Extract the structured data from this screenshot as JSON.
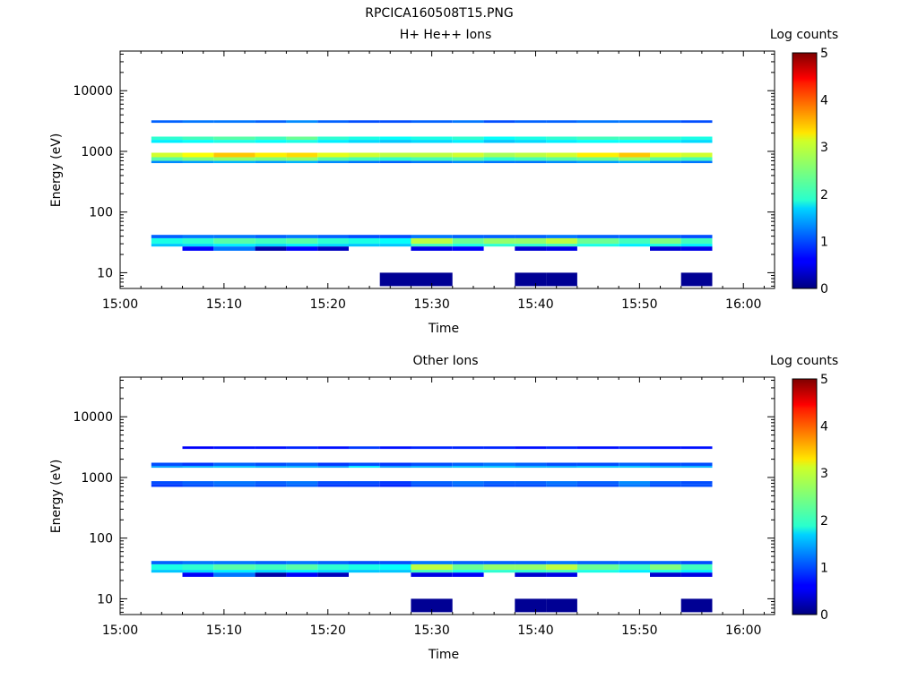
{
  "figure_title": "RPCICA160508T15.PNG",
  "chart_data": [
    {
      "type": "heatmap",
      "title": "H+ He++ Ions",
      "xlabel": "Time",
      "ylabel": "Energy (eV)",
      "yscale": "log",
      "xlim": [
        "15:00",
        "16:03"
      ],
      "ylim": [
        5.5,
        45000
      ],
      "xticks": [
        "15:00",
        "15:10",
        "15:20",
        "15:30",
        "15:40",
        "15:50",
        "16:00"
      ],
      "yticks": [
        "10",
        "100",
        "1000",
        "10000"
      ],
      "colorbar": {
        "label": "Log counts",
        "min": 0,
        "max": 5,
        "ticks": [
          "0",
          "1",
          "2",
          "3",
          "4",
          "5"
        ],
        "colormap": "jet"
      },
      "time_bins": [
        "15:03",
        "15:06",
        "15:09",
        "15:13",
        "15:16",
        "15:19",
        "15:22",
        "15:25",
        "15:28",
        "15:32",
        "15:35",
        "15:38",
        "15:41",
        "15:44",
        "15:48",
        "15:51",
        "15:54"
      ],
      "time_end": "15:57",
      "bands": [
        {
          "energy_range": [
            800,
            950
          ],
          "log_counts": [
            2.9,
            3.1,
            3.4,
            3.2,
            3.3,
            3.0,
            2.9,
            2.8,
            2.8,
            2.9,
            2.7,
            2.8,
            2.9,
            3.2,
            3.4,
            3.0,
            2.9
          ]
        },
        {
          "energy_range": [
            700,
            800
          ],
          "log_counts": [
            2.3,
            2.5,
            2.6,
            2.5,
            2.6,
            2.3,
            2.2,
            2.1,
            2.2,
            2.3,
            2.1,
            2.2,
            2.3,
            2.4,
            2.6,
            2.3,
            2.2
          ]
        },
        {
          "energy_range": [
            640,
            700
          ],
          "log_counts": [
            1.3,
            1.4,
            1.5,
            1.4,
            1.5,
            1.3,
            1.2,
            1.1,
            1.2,
            1.3,
            1.2,
            1.2,
            1.3,
            1.4,
            1.5,
            1.3,
            1.2
          ]
        },
        {
          "energy_range": [
            1550,
            1750
          ],
          "log_counts": [
            2.1,
            2.2,
            2.3,
            2.2,
            2.4,
            2.1,
            2.0,
            1.9,
            2.0,
            2.1,
            1.9,
            2.0,
            2.1,
            2.2,
            2.2,
            2.1,
            2.0
          ]
        },
        {
          "energy_range": [
            1380,
            1550
          ],
          "log_counts": [
            1.8,
            1.9,
            2.0,
            1.9,
            2.0,
            1.8,
            1.7,
            1.6,
            1.7,
            1.8,
            1.6,
            1.7,
            1.8,
            1.9,
            1.9,
            1.8,
            1.7
          ]
        },
        {
          "energy_range": [
            2950,
            3250
          ],
          "log_counts": [
            1.1,
            1.2,
            1.2,
            1.1,
            1.3,
            1.1,
            1.0,
            1.0,
            1.1,
            1.2,
            1.0,
            1.1,
            1.1,
            1.2,
            1.2,
            1.1,
            1.0
          ]
        },
        {
          "energy_range": [
            30,
            37
          ],
          "log_counts": [
            2.0,
            2.1,
            2.3,
            2.2,
            2.3,
            2.1,
            2.0,
            1.9,
            2.8,
            2.4,
            2.6,
            2.6,
            2.8,
            2.4,
            2.2,
            2.5,
            2.2
          ]
        },
        {
          "energy_range": [
            27,
            30
          ],
          "log_counts": [
            1.6,
            1.7,
            1.8,
            1.7,
            1.8,
            1.7,
            1.6,
            1.6,
            2.2,
            2.0,
            2.1,
            2.1,
            2.2,
            2.0,
            1.8,
            2.0,
            1.8
          ]
        },
        {
          "energy_range": [
            37,
            42
          ],
          "log_counts": [
            1.1,
            1.2,
            1.2,
            1.1,
            1.2,
            1.1,
            1.0,
            1.0,
            1.2,
            1.1,
            1.1,
            1.1,
            1.2,
            1.1,
            1.1,
            1.1,
            1.0
          ]
        },
        {
          "energy_range": [
            23,
            27
          ],
          "log_counts": [
            null,
            0.6,
            1.2,
            0.2,
            0.6,
            0.3,
            null,
            null,
            0.5,
            0.6,
            null,
            0.4,
            0.5,
            null,
            null,
            0.4,
            0.5
          ]
        },
        {
          "energy_range": [
            6,
            10
          ],
          "log_counts": [
            null,
            null,
            null,
            null,
            null,
            null,
            null,
            0.1,
            0.1,
            null,
            null,
            0.1,
            0.1,
            null,
            null,
            null,
            0.1
          ]
        }
      ]
    },
    {
      "type": "heatmap",
      "title": "Other Ions",
      "xlabel": "Time",
      "ylabel": "Energy (eV)",
      "yscale": "log",
      "xlim": [
        "15:00",
        "16:03"
      ],
      "ylim": [
        5.5,
        45000
      ],
      "xticks": [
        "15:00",
        "15:10",
        "15:20",
        "15:30",
        "15:40",
        "15:50",
        "16:00"
      ],
      "yticks": [
        "10",
        "100",
        "1000",
        "10000"
      ],
      "colorbar": {
        "label": "Log counts",
        "min": 0,
        "max": 5,
        "ticks": [
          "0",
          "1",
          "2",
          "3",
          "4",
          "5"
        ],
        "colormap": "jet"
      },
      "time_bins": [
        "15:03",
        "15:06",
        "15:09",
        "15:13",
        "15:16",
        "15:19",
        "15:22",
        "15:25",
        "15:28",
        "15:32",
        "15:35",
        "15:38",
        "15:41",
        "15:44",
        "15:48",
        "15:51",
        "15:54"
      ],
      "time_end": "15:57",
      "bands": [
        {
          "energy_range": [
            1550,
            1750
          ],
          "log_counts": [
            1.0,
            0.9,
            1.1,
            1.0,
            1.1,
            0.9,
            1.0,
            0.9,
            1.0,
            1.1,
            1.2,
            1.1,
            1.0,
            1.0,
            1.1,
            1.0,
            1.0
          ]
        },
        {
          "energy_range": [
            1450,
            1550
          ],
          "log_counts": [
            1.4,
            1.5,
            1.6,
            1.5,
            1.5,
            1.4,
            1.8,
            1.4,
            1.5,
            1.6,
            1.6,
            1.5,
            1.5,
            1.6,
            1.6,
            1.5,
            1.5
          ]
        },
        {
          "energy_range": [
            780,
            870
          ],
          "log_counts": [
            1.0,
            1.1,
            1.2,
            1.1,
            1.2,
            1.0,
            1.0,
            0.9,
            1.1,
            1.2,
            1.1,
            1.1,
            1.2,
            1.1,
            1.3,
            1.1,
            1.0
          ]
        },
        {
          "energy_range": [
            700,
            780
          ],
          "log_counts": [
            0.9,
            1.0,
            1.1,
            1.0,
            1.1,
            0.9,
            0.9,
            0.8,
            1.0,
            1.1,
            1.0,
            1.0,
            1.1,
            1.0,
            1.2,
            1.0,
            1.0
          ]
        },
        {
          "energy_range": [
            2950,
            3250
          ],
          "log_counts": [
            null,
            0.6,
            0.7,
            0.7,
            0.8,
            0.7,
            0.9,
            0.7,
            0.8,
            0.8,
            0.8,
            0.7,
            0.8,
            0.7,
            0.8,
            0.7,
            0.7
          ]
        },
        {
          "energy_range": [
            30,
            37
          ],
          "log_counts": [
            2.0,
            2.1,
            2.3,
            2.2,
            2.3,
            2.1,
            2.0,
            1.9,
            2.8,
            2.4,
            2.6,
            2.6,
            2.8,
            2.4,
            2.2,
            2.5,
            2.2
          ]
        },
        {
          "energy_range": [
            27,
            30
          ],
          "log_counts": [
            1.6,
            1.7,
            1.8,
            1.7,
            1.8,
            1.7,
            1.6,
            1.6,
            2.2,
            2.0,
            2.1,
            2.1,
            2.2,
            2.0,
            1.8,
            2.0,
            1.8
          ]
        },
        {
          "energy_range": [
            37,
            42
          ],
          "log_counts": [
            1.1,
            1.2,
            1.2,
            1.1,
            1.2,
            1.1,
            1.0,
            1.0,
            1.2,
            1.1,
            1.1,
            1.1,
            1.2,
            1.1,
            1.1,
            1.1,
            1.0
          ]
        },
        {
          "energy_range": [
            23,
            27
          ],
          "log_counts": [
            null,
            0.6,
            1.2,
            0.2,
            0.6,
            0.3,
            null,
            null,
            0.5,
            0.6,
            null,
            0.4,
            0.5,
            null,
            null,
            0.4,
            0.5
          ]
        },
        {
          "energy_range": [
            6,
            10
          ],
          "log_counts": [
            null,
            null,
            null,
            null,
            null,
            null,
            null,
            null,
            0.1,
            null,
            null,
            0.1,
            0.1,
            null,
            null,
            null,
            0.1
          ]
        }
      ]
    }
  ]
}
